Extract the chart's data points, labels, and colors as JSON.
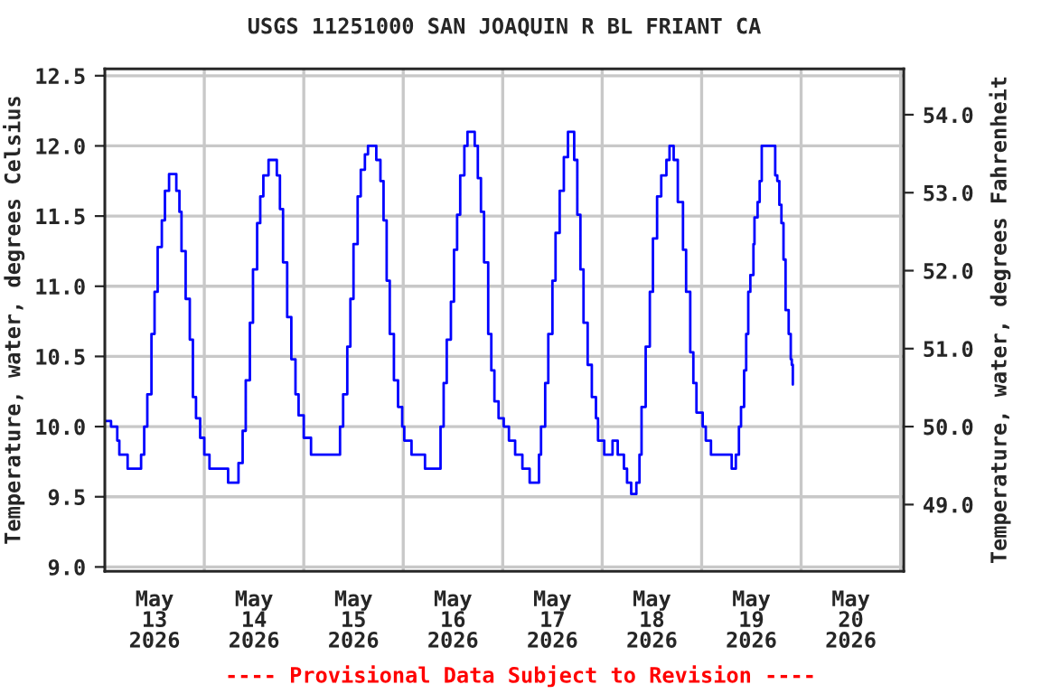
{
  "chart_data": {
    "type": "step",
    "title": "USGS 11251000 SAN JOAQUIN R BL FRIANT CA",
    "ylabel": "Temperature, water, degrees Celsius",
    "y2label": "Temperature, water, degrees Fahrenheit",
    "annotations": [
      "---- Provisional Data Subject to Revision ----"
    ],
    "x": [
      "2026-05-12T12:00",
      "2026-05-12T13:30",
      "2026-05-12T15:00",
      "2026-05-12T15:30",
      "2026-05-12T17:30",
      "2026-05-12T20:00",
      "2026-05-12T20:45",
      "2026-05-12T21:30",
      "2026-05-12T22:15",
      "2026-05-12T23:15",
      "2026-05-13T00:00",
      "2026-05-13T00:45",
      "2026-05-13T01:45",
      "2026-05-13T02:30",
      "2026-05-13T03:30",
      "2026-05-13T04:45",
      "2026-05-13T05:15",
      "2026-05-13T06:00",
      "2026-05-13T06:30",
      "2026-05-13T07:30",
      "2026-05-13T08:30",
      "2026-05-13T09:15",
      "2026-05-13T10:00",
      "2026-05-13T11:00",
      "2026-05-13T12:00",
      "2026-05-13T13:15",
      "2026-05-13T17:30",
      "2026-05-13T17:45",
      "2026-05-13T19:30",
      "2026-05-13T20:15",
      "2026-05-13T21:15",
      "2026-05-13T22:00",
      "2026-05-13T23:00",
      "2026-05-13T23:45",
      "2026-05-14T00:45",
      "2026-05-14T01:30",
      "2026-05-14T02:15",
      "2026-05-14T03:30",
      "2026-05-14T04:45",
      "2026-05-14T05:30",
      "2026-05-14T06:15",
      "2026-05-14T07:00",
      "2026-05-14T08:00",
      "2026-05-14T09:00",
      "2026-05-14T10:00",
      "2026-05-14T10:45",
      "2026-05-14T12:00",
      "2026-05-14T13:45",
      "2026-05-14T20:30",
      "2026-05-14T20:45",
      "2026-05-14T21:30",
      "2026-05-14T22:30",
      "2026-05-14T23:15",
      "2026-05-15T00:00",
      "2026-05-15T01:00",
      "2026-05-15T01:45",
      "2026-05-15T02:45",
      "2026-05-15T03:30",
      "2026-05-15T04:45",
      "2026-05-15T05:30",
      "2026-05-15T06:30",
      "2026-05-15T07:15",
      "2026-05-15T08:00",
      "2026-05-15T08:45",
      "2026-05-15T09:45",
      "2026-05-15T10:45",
      "2026-05-15T11:45",
      "2026-05-15T12:15",
      "2026-05-15T14:00",
      "2026-05-15T17:15",
      "2026-05-15T20:15",
      "2026-05-15T21:00",
      "2026-05-15T21:45",
      "2026-05-15T22:30",
      "2026-05-15T23:30",
      "2026-05-16T00:15",
      "2026-05-16T01:00",
      "2026-05-16T01:45",
      "2026-05-16T02:45",
      "2026-05-16T03:30",
      "2026-05-16T04:30",
      "2026-05-16T05:15",
      "2026-05-16T06:00",
      "2026-05-16T06:45",
      "2026-05-16T07:30",
      "2026-05-16T08:30",
      "2026-05-16T09:15",
      "2026-05-16T10:00",
      "2026-05-16T11:00",
      "2026-05-16T12:15",
      "2026-05-16T13:30",
      "2026-05-16T15:00",
      "2026-05-16T16:45",
      "2026-05-16T18:30",
      "2026-05-16T20:00",
      "2026-05-16T20:45",
      "2026-05-16T21:15",
      "2026-05-16T22:15",
      "2026-05-16T23:00",
      "2026-05-17T00:00",
      "2026-05-17T00:45",
      "2026-05-17T01:45",
      "2026-05-17T02:45",
      "2026-05-17T03:45",
      "2026-05-17T04:45",
      "2026-05-17T05:15",
      "2026-05-17T06:00",
      "2026-05-17T06:45",
      "2026-05-17T07:30",
      "2026-05-17T08:30",
      "2026-05-17T09:30",
      "2026-05-17T10:30",
      "2026-05-17T11:00",
      "2026-05-17T12:30",
      "2026-05-17T14:30",
      "2026-05-17T15:45",
      "2026-05-17T17:15",
      "2026-05-17T18:00",
      "2026-05-17T19:00",
      "2026-05-17T20:15",
      "2026-05-17T21:00",
      "2026-05-17T21:30",
      "2026-05-17T22:30",
      "2026-05-17T23:30",
      "2026-05-18T00:15",
      "2026-05-18T01:15",
      "2026-05-18T02:15",
      "2026-05-18T03:30",
      "2026-05-18T04:15",
      "2026-05-18T05:15",
      "2026-05-18T06:15",
      "2026-05-18T07:30",
      "2026-05-18T08:15",
      "2026-05-18T09:15",
      "2026-05-18T10:00",
      "2026-05-18T10:45",
      "2026-05-18T12:15",
      "2026-05-18T13:00",
      "2026-05-18T14:15",
      "2026-05-18T19:00",
      "2026-05-18T19:15",
      "2026-05-18T20:15",
      "2026-05-18T21:00",
      "2026-05-18T21:30",
      "2026-05-18T22:15",
      "2026-05-18T22:45",
      "2026-05-18T23:15",
      "2026-05-18T23:45",
      "2026-05-19T00:30",
      "2026-05-19T00:45",
      "2026-05-19T01:30",
      "2026-05-19T02:00",
      "2026-05-19T02:30",
      "2026-05-19T05:15",
      "2026-05-19T05:45",
      "2026-05-19T06:15",
      "2026-05-19T06:45",
      "2026-05-19T07:15",
      "2026-05-19T07:45",
      "2026-05-19T08:15",
      "2026-05-19T09:00",
      "2026-05-19T09:30",
      "2026-05-19T09:45",
      "2026-05-19T10:00"
    ],
    "series": [
      {
        "color": "#0000ff",
        "values": [
          10.04,
          10.0,
          9.9,
          9.8,
          9.7,
          9.7,
          9.8,
          10.0,
          10.23,
          10.66,
          10.96,
          11.28,
          11.47,
          11.68,
          11.8,
          11.8,
          11.68,
          11.53,
          11.25,
          10.91,
          10.62,
          10.21,
          10.06,
          9.92,
          9.8,
          9.7,
          9.7,
          9.6,
          9.6,
          9.74,
          9.97,
          10.33,
          10.74,
          11.12,
          11.45,
          11.64,
          11.79,
          11.9,
          11.9,
          11.79,
          11.55,
          11.17,
          10.78,
          10.48,
          10.23,
          10.08,
          9.92,
          9.8,
          9.8,
          10.0,
          10.23,
          10.57,
          10.91,
          11.3,
          11.64,
          11.83,
          11.94,
          12.0,
          12.0,
          11.9,
          11.75,
          11.47,
          11.04,
          10.66,
          10.33,
          10.14,
          10.0,
          9.9,
          9.8,
          9.7,
          9.7,
          10.0,
          10.31,
          10.62,
          10.89,
          11.26,
          11.51,
          11.79,
          12.0,
          12.1,
          12.1,
          12.0,
          11.77,
          11.53,
          11.17,
          10.66,
          10.4,
          10.18,
          10.06,
          10.0,
          9.9,
          9.8,
          9.7,
          9.6,
          9.6,
          9.8,
          10.0,
          10.31,
          10.66,
          11.04,
          11.38,
          11.68,
          11.92,
          12.1,
          12.1,
          11.9,
          11.51,
          11.12,
          10.74,
          10.44,
          10.21,
          10.06,
          9.9,
          9.8,
          9.9,
          9.8,
          9.7,
          9.6,
          9.52,
          9.6,
          9.8,
          10.14,
          10.57,
          10.96,
          11.34,
          11.64,
          11.79,
          11.9,
          12.0,
          11.9,
          11.6,
          11.26,
          10.96,
          10.53,
          10.31,
          10.1,
          10.0,
          9.9,
          9.8,
          9.8,
          9.7,
          9.8,
          10.0,
          10.14,
          10.4,
          10.66,
          10.96,
          11.08,
          11.3,
          11.49,
          11.6,
          11.75,
          12.0,
          12.0,
          11.79,
          11.75,
          11.58,
          11.45,
          11.19,
          10.83,
          10.66,
          10.48,
          10.44,
          10.3
        ]
      }
    ],
    "xlim": [
      "2026-05-12T12:00",
      "2026-05-20T12:45"
    ],
    "xticks": [
      {
        "value": "2026-05-13",
        "label": "May\n13\n2026"
      },
      {
        "value": "2026-05-14",
        "label": "May\n14\n2026"
      },
      {
        "value": "2026-05-15",
        "label": "May\n15\n2026"
      },
      {
        "value": "2026-05-16",
        "label": "May\n16\n2026"
      },
      {
        "value": "2026-05-17",
        "label": "May\n17\n2026"
      },
      {
        "value": "2026-05-18",
        "label": "May\n18\n2026"
      },
      {
        "value": "2026-05-19",
        "label": "May\n19\n2026"
      },
      {
        "value": "2026-05-20",
        "label": "May\n20\n2026"
      },
      {
        "value": "2026-05-13T12:00",
        "label": null
      },
      {
        "value": "2026-05-14T12:00",
        "label": null
      },
      {
        "value": "2026-05-15T12:00",
        "label": null
      },
      {
        "value": "2026-05-16T12:00",
        "label": null
      },
      {
        "value": "2026-05-17T12:00",
        "label": null
      },
      {
        "value": "2026-05-18T12:00",
        "label": null
      },
      {
        "value": "2026-05-19T12:00",
        "label": null
      },
      {
        "value": "2026-05-20T12:00",
        "label": null
      }
    ],
    "ylim": [
      8.97,
      12.55
    ],
    "yticks": [
      {
        "value": 9,
        "label": "9.0"
      },
      9.5,
      {
        "value": 10,
        "label": "10.0"
      },
      10.5,
      {
        "value": 11,
        "label": "11.0"
      },
      11.5,
      {
        "value": 12,
        "label": "12.0"
      },
      12.5
    ],
    "y2lim": [
      48.146,
      54.59
    ],
    "y2ticks": [
      {
        "value": 49,
        "label": "49.0"
      },
      {
        "value": 50,
        "label": "50.0"
      },
      {
        "value": 51,
        "label": "51.0"
      },
      {
        "value": 52,
        "label": "52.0"
      },
      {
        "value": 53,
        "label": "53.0"
      },
      {
        "value": 54,
        "label": "54.0"
      }
    ],
    "grid": true,
    "line_style": "solid",
    "marker": "none"
  }
}
